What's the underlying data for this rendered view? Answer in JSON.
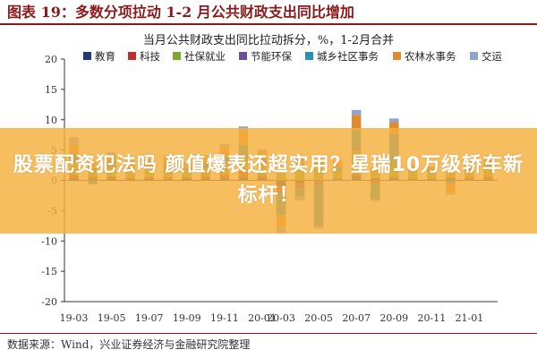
{
  "header": {
    "figure_title": "图表 19：多数分项拉动 1-2 月公共财政支出同比增加"
  },
  "overlay": {
    "headline": "股票配资犯法吗 颜值爆表还超实用？星瑞10万级轿车新标杆！"
  },
  "footer": {
    "source": "数据来源：Wind，兴业证券经济与金融研究院整理"
  },
  "chart_data": {
    "type": "bar",
    "stacked": true,
    "title": "当月公共财政支出同比拉动拆分，%，1-2月合并",
    "xlabel": "",
    "ylabel": "",
    "ylim": [
      -20,
      20
    ],
    "yticks": [
      -20,
      -15,
      -10,
      -5,
      0,
      5,
      10,
      15,
      20
    ],
    "x_tick_labels": [
      "19-03",
      "19-05",
      "19-07",
      "19-09",
      "19-11",
      "20-01",
      "20-03",
      "20-05",
      "20-07",
      "20-09",
      "20-11",
      "21-01"
    ],
    "grid": false,
    "legend_position": "top",
    "categories": [
      "19-03",
      "19-04",
      "19-05",
      "19-06",
      "19-07",
      "19-08",
      "19-09",
      "19-10",
      "19-11",
      "19-12",
      "20-01",
      "20-03",
      "20-04",
      "20-05",
      "20-06",
      "20-07",
      "20-08",
      "20-09",
      "20-10",
      "20-11",
      "20-12",
      "21-01",
      "21-02"
    ],
    "series": [
      {
        "name": "教育",
        "color": "#1f3a7a",
        "values": [
          0.4,
          0.3,
          0.3,
          0.2,
          0.3,
          0.2,
          0.3,
          0.3,
          0.4,
          0.6,
          0.4,
          -0.9,
          -0.3,
          0.1,
          0.2,
          0.6,
          0.3,
          0.4,
          0.2,
          0.2,
          0.3,
          0.2,
          0.2
        ]
      },
      {
        "name": "科技",
        "color": "#c0302b",
        "values": [
          0.5,
          0.3,
          0.3,
          0.2,
          0.2,
          0.3,
          0.2,
          0.3,
          0.5,
          1.0,
          0.4,
          -0.7,
          -0.4,
          -0.2,
          0.1,
          0.4,
          -0.3,
          0.2,
          0.1,
          0.1,
          0.2,
          0.3,
          0.4
        ]
      },
      {
        "name": "社保就业",
        "color": "#7fa832",
        "values": [
          2.0,
          1.2,
          1.5,
          1.1,
          1.3,
          1.4,
          1.2,
          1.5,
          1.8,
          2.2,
          1.8,
          1.6,
          2.2,
          1.8,
          1.3,
          4.0,
          1.2,
          1.8,
          1.1,
          1.0,
          0.8,
          1.2,
          1.4
        ]
      },
      {
        "name": "节能环保",
        "color": "#6b4f9a",
        "values": [
          0.3,
          0.2,
          0.2,
          0.1,
          0.2,
          0.2,
          0.1,
          0.2,
          0.2,
          0.5,
          0.2,
          -0.6,
          -0.5,
          -0.4,
          0.1,
          0.3,
          -0.3,
          0.2,
          0.1,
          0.1,
          0.1,
          0.2,
          0.1
        ]
      },
      {
        "name": "城乡社区事务",
        "color": "#2a8fb4",
        "values": [
          1.2,
          -0.6,
          0.8,
          0.3,
          0.4,
          0.5,
          0.2,
          0.4,
          1.0,
          1.5,
          0.6,
          -3.5,
          -1.5,
          -7.0,
          0.5,
          3.0,
          -2.5,
          5.0,
          0.3,
          0.4,
          -0.6,
          0.3,
          0.5
        ]
      },
      {
        "name": "农林水事务",
        "color": "#e28a2f",
        "values": [
          1.5,
          0.9,
          1.0,
          1.2,
          0.9,
          1.1,
          0.8,
          1.2,
          1.6,
          2.5,
          1.4,
          -2.0,
          1.6,
          1.2,
          0.9,
          2.5,
          0.6,
          2.0,
          0.5,
          0.4,
          -1.5,
          0.7,
          1.0
        ]
      },
      {
        "name": "交运",
        "color": "#8ea6cf",
        "values": [
          1.2,
          0.3,
          0.5,
          0.2,
          0.3,
          0.4,
          0.2,
          0.3,
          0.5,
          0.6,
          0.3,
          -1.0,
          -0.6,
          -0.4,
          0.2,
          0.8,
          -0.3,
          0.6,
          0.2,
          0.1,
          -0.3,
          0.2,
          0.3
        ]
      }
    ]
  }
}
